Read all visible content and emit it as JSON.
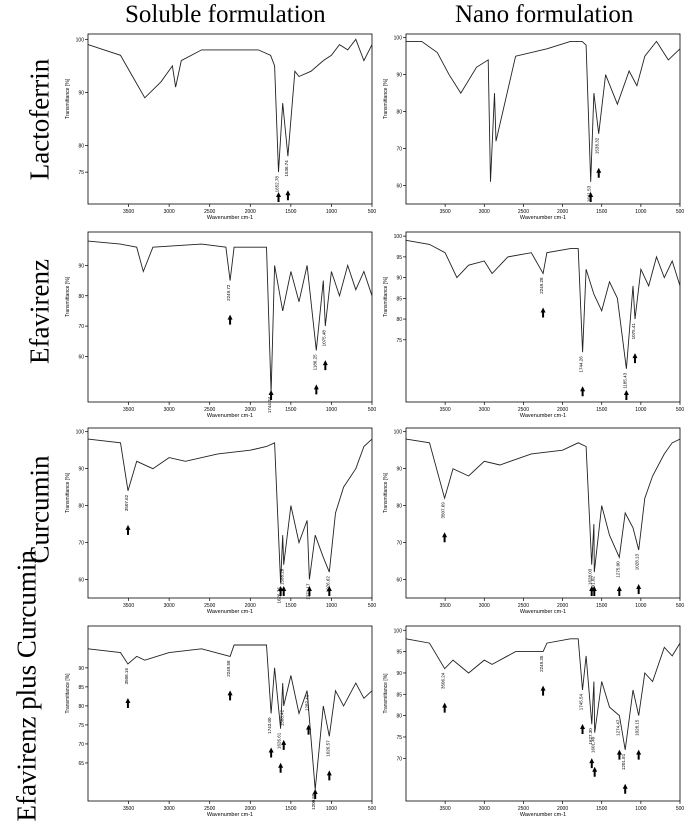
{
  "headers": {
    "left": "Soluble formulation",
    "right": "Nano formulation"
  },
  "row_labels": [
    "Lactoferrin",
    "Efavirenz",
    "Curcumin",
    "Efavirenz plus Curcumin"
  ],
  "chart_data": [
    {
      "type": "line",
      "panel": "lactoferrin-soluble",
      "xlabel": "Wavenumber cm-1",
      "ylabel": "Transmittance [%]",
      "xlim": [
        4000,
        500
      ],
      "ylim": [
        69,
        101
      ],
      "x_ticks": [
        3500,
        3000,
        2500,
        2000,
        1500,
        1000,
        500
      ],
      "y_ticks": [
        100,
        90,
        80,
        75
      ],
      "series": [
        {
          "x": [
            4000,
            3800,
            3600,
            3450,
            3300,
            3100,
            2960,
            2920,
            2850,
            2600,
            2200,
            1900,
            1750,
            1700,
            1652,
            1600,
            1536,
            1450,
            1400,
            1250,
            1100,
            1000,
            900,
            800,
            700,
            600,
            500
          ],
          "y": [
            99,
            98,
            97,
            93,
            89,
            92,
            95,
            91,
            96,
            98,
            98,
            98,
            97,
            95,
            75,
            88,
            78,
            94,
            93,
            94,
            96,
            97,
            99,
            98,
            100,
            96,
            99
          ]
        }
      ],
      "annotations": [
        {
          "x": 1652,
          "text": "1652.78"
        },
        {
          "x": 1536,
          "text": "1536.74"
        }
      ]
    },
    {
      "type": "line",
      "panel": "lactoferrin-nano",
      "xlabel": "Wavenumber cm-1",
      "ylabel": "Transmittance [%]",
      "xlim": [
        4000,
        500
      ],
      "ylim": [
        55,
        101
      ],
      "x_ticks": [
        3500,
        3000,
        2500,
        2000,
        1500,
        1000,
        500
      ],
      "y_ticks": [
        100,
        90,
        80,
        70,
        60
      ],
      "series": [
        {
          "x": [
            4000,
            3800,
            3600,
            3450,
            3300,
            3100,
            2950,
            2920,
            2870,
            2850,
            2600,
            2200,
            1900,
            1750,
            1700,
            1641,
            1600,
            1538,
            1450,
            1300,
            1150,
            1050,
            950,
            800,
            650,
            500
          ],
          "y": [
            99,
            99,
            96,
            90,
            85,
            92,
            94,
            61,
            85,
            72,
            95,
            97,
            99,
            99,
            98,
            61,
            85,
            74,
            90,
            82,
            91,
            87,
            95,
            99,
            94,
            97
          ]
        }
      ],
      "annotations": [
        {
          "x": 1641,
          "text": "1641.53"
        },
        {
          "x": 1538,
          "text": "1538.32"
        }
      ]
    },
    {
      "type": "line",
      "panel": "efavirenz-soluble",
      "xlabel": "Wavenumber cm-1",
      "ylabel": "Transmittance [%]",
      "xlim": [
        4000,
        500
      ],
      "ylim": [
        45,
        101
      ],
      "x_ticks": [
        3500,
        3000,
        2500,
        2000,
        1500,
        1000,
        500
      ],
      "y_ticks": [
        90,
        80,
        70,
        60
      ],
      "series": [
        {
          "x": [
            4000,
            3600,
            3400,
            3318,
            3200,
            2600,
            2300,
            2249,
            2200,
            1800,
            1744,
            1700,
            1600,
            1500,
            1400,
            1300,
            1186,
            1100,
            1075,
            1000,
            900,
            800,
            700,
            600,
            500
          ],
          "y": [
            98,
            97,
            96,
            88,
            96,
            97,
            96,
            85,
            96,
            96,
            48,
            90,
            75,
            88,
            78,
            90,
            62,
            85,
            70,
            88,
            80,
            90,
            82,
            88,
            80
          ]
        }
      ],
      "annotations": [
        {
          "x": 2249,
          "text": "2249.72"
        },
        {
          "x": 1744,
          "text": "1744.34"
        },
        {
          "x": 1186,
          "text": "1186.25"
        },
        {
          "x": 1075,
          "text": "1075.48"
        }
      ]
    },
    {
      "type": "line",
      "panel": "efavirenz-nano",
      "xlabel": "Wavenumber cm-1",
      "ylabel": "Transmittance [%]",
      "xlim": [
        4000,
        500
      ],
      "ylim": [
        60,
        101
      ],
      "x_ticks": [
        3500,
        3000,
        2500,
        2000,
        1500,
        1000,
        500
      ],
      "y_ticks": [
        100,
        95,
        90,
        85,
        80,
        75
      ],
      "series": [
        {
          "x": [
            4000,
            3700,
            3500,
            3350,
            3200,
            3000,
            2900,
            2700,
            2400,
            2249,
            2200,
            1900,
            1800,
            1744,
            1700,
            1600,
            1500,
            1400,
            1300,
            1185,
            1100,
            1075,
            1000,
            900,
            800,
            700,
            600,
            500
          ],
          "y": [
            99,
            98,
            96,
            90,
            93,
            94,
            91,
            95,
            96,
            91,
            96,
            97,
            97,
            72,
            92,
            86,
            82,
            89,
            85,
            68,
            88,
            80,
            92,
            88,
            95,
            90,
            94,
            88
          ]
        }
      ],
      "annotations": [
        {
          "x": 2249,
          "text": "2249.28"
        },
        {
          "x": 1744,
          "text": "1744.26"
        },
        {
          "x": 1185,
          "text": "1185.43"
        },
        {
          "x": 1075,
          "text": "1075.41"
        }
      ]
    },
    {
      "type": "line",
      "panel": "curcumin-soluble",
      "xlabel": "Wavenumber cm-1",
      "ylabel": "Transmittance [%]",
      "xlim": [
        4000,
        500
      ],
      "ylim": [
        55,
        101
      ],
      "x_ticks": [
        3500,
        3000,
        2500,
        2000,
        1500,
        1000,
        500
      ],
      "y_ticks": [
        100,
        90,
        80,
        70,
        60
      ],
      "series": [
        {
          "x": [
            4000,
            3600,
            3507,
            3400,
            3200,
            3000,
            2800,
            2400,
            2000,
            1800,
            1700,
            1626,
            1600,
            1588,
            1500,
            1400,
            1300,
            1271,
            1200,
            1100,
            1026,
            950,
            850,
            700,
            600,
            500
          ],
          "y": [
            98,
            97,
            84,
            92,
            90,
            93,
            92,
            94,
            95,
            96,
            97,
            59,
            72,
            64,
            80,
            70,
            76,
            60,
            72,
            66,
            62,
            78,
            85,
            90,
            96,
            98
          ]
        }
      ],
      "annotations": [
        {
          "x": 3507,
          "text": "3507.62"
        },
        {
          "x": 1626,
          "text": "1626.76"
        },
        {
          "x": 1588,
          "text": "1588.28"
        },
        {
          "x": 1271,
          "text": "1271.17"
        },
        {
          "x": 1026,
          "text": "1026.62"
        }
      ]
    },
    {
      "type": "line",
      "panel": "curcumin-nano",
      "xlabel": "Wavenumber cm-1",
      "ylabel": "Transmittance [%]",
      "xlim": [
        4000,
        500
      ],
      "ylim": [
        55,
        101
      ],
      "x_ticks": [
        3500,
        3000,
        2500,
        2000,
        1500,
        1000,
        500
      ],
      "y_ticks": [
        100,
        90,
        80,
        70,
        60
      ],
      "series": [
        {
          "x": [
            4000,
            3700,
            3507,
            3400,
            3200,
            3000,
            2800,
            2400,
            2000,
            1800,
            1700,
            1628,
            1600,
            1595,
            1500,
            1400,
            1275,
            1200,
            1100,
            1028,
            950,
            850,
            700,
            600,
            500
          ],
          "y": [
            98,
            97,
            82,
            90,
            88,
            92,
            91,
            94,
            95,
            97,
            96,
            64,
            75,
            62,
            80,
            72,
            66,
            78,
            74,
            68,
            82,
            88,
            94,
            97,
            98
          ]
        }
      ],
      "annotations": [
        {
          "x": 3507,
          "text": "3507.69"
        },
        {
          "x": 1628,
          "text": "1628.03"
        },
        {
          "x": 1595,
          "text": "1601.02"
        },
        {
          "x": 1275,
          "text": "1275.00"
        },
        {
          "x": 1028,
          "text": "1028.13"
        }
      ]
    },
    {
      "type": "line",
      "panel": "efavirenz-curcumin-soluble",
      "xlabel": "Wavenumber cm-1",
      "ylabel": "Transmittance [%]",
      "xlim": [
        4000,
        500
      ],
      "ylim": [
        55,
        101
      ],
      "x_ticks": [
        3500,
        3000,
        2500,
        2000,
        1500,
        1000,
        500
      ],
      "y_ticks": [
        90,
        85,
        80,
        75,
        70,
        65
      ],
      "series": [
        {
          "x": [
            4000,
            3600,
            3508,
            3400,
            3300,
            3000,
            2600,
            2249,
            2200,
            1800,
            1743,
            1700,
            1626,
            1600,
            1588,
            1500,
            1400,
            1300,
            1200,
            1100,
            1026,
            950,
            850,
            700,
            600,
            500
          ],
          "y": [
            95,
            94,
            91,
            93,
            92,
            94,
            95,
            93,
            96,
            96,
            78,
            90,
            74,
            86,
            80,
            88,
            78,
            84,
            58,
            80,
            72,
            84,
            80,
            86,
            82,
            84
          ]
        }
      ],
      "annotations": [
        {
          "x": 3508,
          "text": "3508.16"
        },
        {
          "x": 2249,
          "text": "2249.58"
        },
        {
          "x": 1743,
          "text": "1743.00"
        },
        {
          "x": 1626,
          "text": "1626.61"
        },
        {
          "x": 1588,
          "text": "1588.42"
        },
        {
          "x": 1282,
          "text": "1282.41"
        },
        {
          "x": 1200,
          "text": "1200.58"
        },
        {
          "x": 1026,
          "text": "1026.57"
        }
      ]
    },
    {
      "type": "line",
      "panel": "efavirenz-curcumin-nano",
      "xlabel": "Wavenumber cm-1",
      "ylabel": "Transmittance [%]",
      "xlim": [
        4000,
        500
      ],
      "ylim": [
        60,
        101
      ],
      "x_ticks": [
        3500,
        3000,
        2500,
        2000,
        1500,
        1000,
        500
      ],
      "y_ticks": [
        100,
        95,
        90,
        85,
        80,
        75,
        70
      ],
      "series": [
        {
          "x": [
            4000,
            3700,
            3506,
            3400,
            3200,
            3000,
            2900,
            2600,
            2249,
            2200,
            1900,
            1800,
            1745,
            1700,
            1627,
            1600,
            1590,
            1500,
            1400,
            1274,
            1200,
            1100,
            1028,
            950,
            850,
            700,
            600,
            500
          ],
          "y": [
            98,
            97,
            91,
            93,
            90,
            93,
            92,
            95,
            95,
            97,
            98,
            98,
            86,
            94,
            78,
            88,
            76,
            88,
            82,
            80,
            72,
            86,
            80,
            90,
            88,
            96,
            94,
            97
          ]
        }
      ],
      "annotations": [
        {
          "x": 3506,
          "text": "3506.24"
        },
        {
          "x": 2249,
          "text": "2249.35"
        },
        {
          "x": 1745,
          "text": "1745.54"
        },
        {
          "x": 1627,
          "text": "1627.30"
        },
        {
          "x": 1590,
          "text": "1601.40"
        },
        {
          "x": 1274,
          "text": "1274.47"
        },
        {
          "x": 1200,
          "text": "1201.81"
        },
        {
          "x": 1028,
          "text": "1028.15"
        }
      ]
    }
  ]
}
